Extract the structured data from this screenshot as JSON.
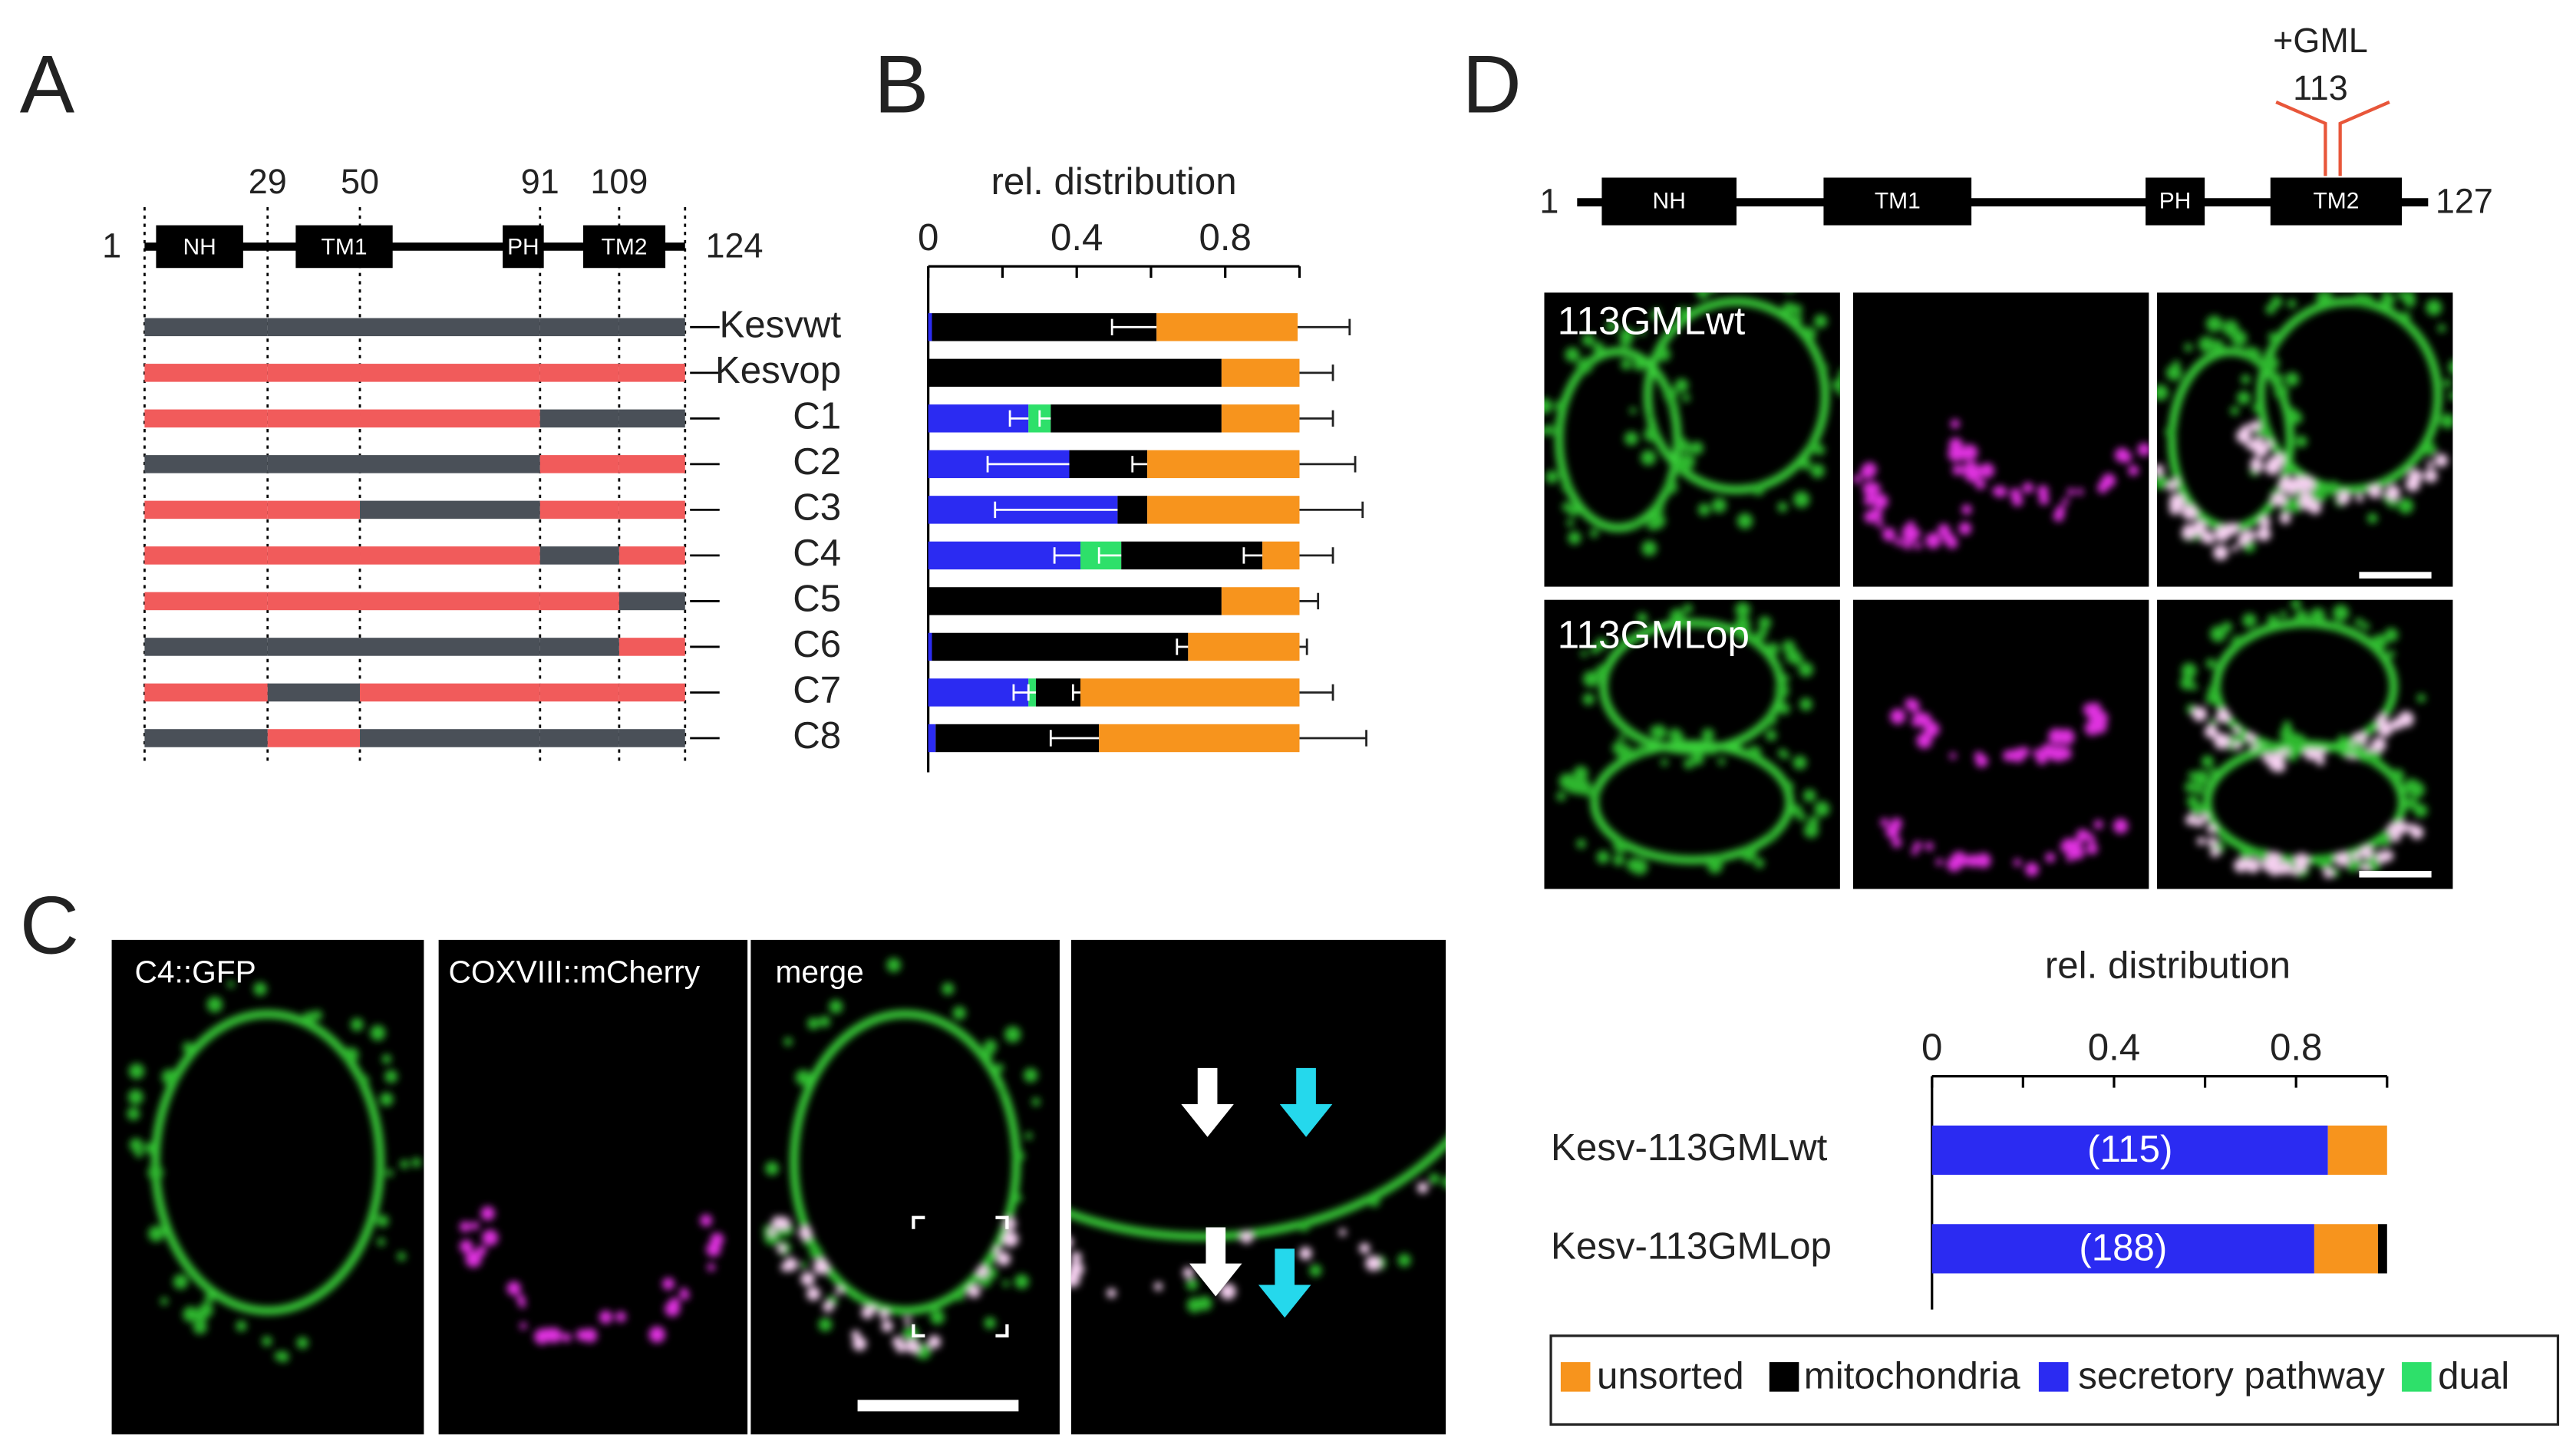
{
  "panel_labels": [
    "A",
    "B",
    "C",
    "D"
  ],
  "panel_a": {
    "start": 1,
    "end": 124,
    "positions": [
      29,
      50,
      91,
      109
    ],
    "domains": [
      "NH",
      "TM1",
      "PH",
      "TM2"
    ],
    "rows": [
      [
        "#4a5058",
        "#4a5058",
        "#4a5058",
        "#4a5058",
        "#4a5058"
      ],
      [
        "#f15b5b",
        "#f15b5b",
        "#f15b5b",
        "#f15b5b",
        "#f15b5b"
      ],
      [
        "#f15b5b",
        "#f15b5b",
        "#f15b5b",
        "#4a5058",
        "#4a5058"
      ],
      [
        "#4a5058",
        "#4a5058",
        "#4a5058",
        "#f15b5b",
        "#f15b5b"
      ],
      [
        "#f15b5b",
        "#f15b5b",
        "#4a5058",
        "#f15b5b",
        "#f15b5b"
      ],
      [
        "#f15b5b",
        "#f15b5b",
        "#f15b5b",
        "#4a5058",
        "#f15b5b"
      ],
      [
        "#f15b5b",
        "#f15b5b",
        "#f15b5b",
        "#f15b5b",
        "#4a5058"
      ],
      [
        "#4a5058",
        "#4a5058",
        "#4a5058",
        "#4a5058",
        "#f15b5b"
      ],
      [
        "#f15b5b",
        "#4a5058",
        "#f15b5b",
        "#f15b5b",
        "#f15b5b"
      ],
      [
        "#4a5058",
        "#f15b5b",
        "#4a5058",
        "#4a5058",
        "#4a5058"
      ]
    ]
  },
  "panel_c": {
    "image_labels": [
      "C4::GFP",
      "COXVIII::mCherry",
      "merge"
    ]
  },
  "panel_d": {
    "start": 1,
    "end": 127,
    "domains": [
      "NH",
      "TM1",
      "PH",
      "TM2"
    ],
    "insertion_label": "+GML",
    "insertion_position": 113,
    "image_labels": [
      "113GMLwt",
      "113GMLop"
    ]
  },
  "chart_data": [
    {
      "type": "bar",
      "orientation": "horizontal",
      "stacked": true,
      "title": "rel. distribution",
      "categories": [
        "Kesvwt",
        "Kesvop",
        "C1",
        "C2",
        "C3",
        "C4",
        "C5",
        "C6",
        "C7",
        "C8"
      ],
      "xlim": [
        0,
        1
      ],
      "xticks": [
        0,
        0.4,
        0.8
      ],
      "minor_xticks": [
        0.2,
        0.6,
        1.0
      ],
      "series": [
        {
          "name": "unsorted",
          "color": "#f7941d",
          "values": [
            0.38,
            0.21,
            0.21,
            0.41,
            0.41,
            0.1,
            0.21,
            0.3,
            0.59,
            0.54
          ],
          "errors": [
            0.14,
            0.09,
            0.09,
            0.15,
            0.17,
            0.09,
            0.05,
            0.02,
            0.09,
            0.18
          ]
        },
        {
          "name": "mitochondria",
          "color": "#000000",
          "values": [
            0.605,
            0.79,
            0.46,
            0.21,
            0.08,
            0.38,
            0.79,
            0.69,
            0.12,
            0.44
          ],
          "errors": [
            0.12,
            null,
            null,
            0.04,
            null,
            0.05,
            null,
            0.03,
            0.02,
            0.13
          ]
        },
        {
          "name": "secretory pathway",
          "color": "#2b2bf2",
          "values": [
            0.01,
            0,
            0.27,
            0.38,
            0.51,
            0.41,
            0,
            0.01,
            0.27,
            0.02
          ],
          "errors": [
            null,
            null,
            0.05,
            0.22,
            0.33,
            0.07,
            null,
            null,
            0.04,
            null
          ]
        },
        {
          "name": "dual",
          "color": "#2ee06a",
          "values": [
            0,
            0,
            0.06,
            0,
            0,
            0.11,
            0,
            0,
            0.02,
            0
          ],
          "errors": [
            null,
            null,
            0.03,
            null,
            null,
            0.06,
            null,
            null,
            0.02,
            null
          ]
        }
      ]
    },
    {
      "type": "bar",
      "orientation": "horizontal",
      "stacked": true,
      "title": "rel. distribution",
      "categories": [
        "Kesv-113GMLwt",
        "Kesv-113GMLop"
      ],
      "xlim": [
        0,
        1
      ],
      "xticks": [
        0,
        0.4,
        0.8
      ],
      "minor_xticks": [
        0.2,
        0.6,
        1.0
      ],
      "annotations": [
        "(115)",
        "(188)"
      ],
      "series": [
        {
          "color": "#f7941d",
          "values": [
            0.13,
            0.14
          ]
        },
        {
          "color": "#000000",
          "values": [
            0,
            0.02
          ]
        },
        {
          "color": "#2b2bf2",
          "values": [
            0.87,
            0.84
          ]
        }
      ]
    }
  ]
}
